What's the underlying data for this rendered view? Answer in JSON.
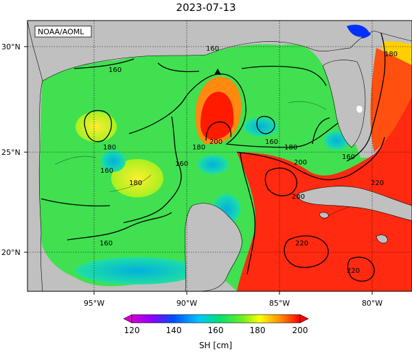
{
  "title": "2023-07-13",
  "credit": "NOAA/AOML",
  "lat_labels": [
    "30°N",
    "25°N",
    "20°N"
  ],
  "lon_labels": [
    "95°W",
    "90°W",
    "85°W",
    "80°W"
  ],
  "contour_labels": [
    "160",
    "160",
    "160",
    "160",
    "160",
    "160",
    "160",
    "160",
    "180",
    "180",
    "180",
    "180",
    "200",
    "160",
    "160",
    "180",
    "200",
    "200",
    "220",
    "220",
    "220"
  ],
  "colorbar": {
    "ticks": [
      "120",
      "140",
      "160",
      "180",
      "200"
    ],
    "label": "SH [cm]",
    "range": [
      120,
      200
    ]
  },
  "colors": {
    "land": "#c0c0c0",
    "water_low": "#00d2d2",
    "water_mid": "#40e040",
    "water_high": "#ffff00",
    "loop_current": "#ff2000"
  },
  "marker": "triangle-up"
}
